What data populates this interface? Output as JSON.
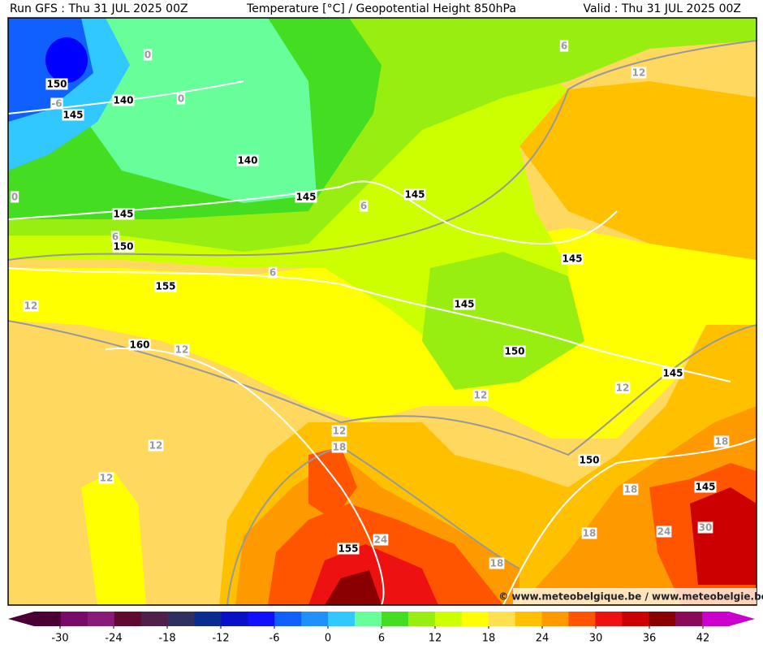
{
  "header": {
    "run": "Run GFS : Thu 31 JUL 2025 00Z",
    "title": "Temperature [°C] / Geopotential Height 850hPa",
    "valid": "Valid : Thu 31 JUL 2025 00Z"
  },
  "map": {
    "height_labels": [
      "150",
      "145",
      "140",
      "140",
      "145",
      "145",
      "150",
      "155",
      "160",
      "145",
      "145",
      "145",
      "150",
      "145",
      "150",
      "145",
      "155"
    ],
    "temperature_labels": [
      "0",
      "-6",
      "0",
      "0",
      "6",
      "6",
      "6",
      "6",
      "12",
      "12",
      "12",
      "12",
      "12",
      "12",
      "18",
      "12",
      "12",
      "18",
      "18",
      "18",
      "24",
      "24",
      "30",
      "18"
    ],
    "credit": "© www.meteobelgique.be / www.meteobelgie.be"
  },
  "colorbar": {
    "ticks": [
      -30,
      -24,
      -18,
      -12,
      -6,
      0,
      6,
      12,
      18,
      24,
      30,
      36,
      42
    ],
    "colors": [
      "#4a0033",
      "#7a0a6a",
      "#8a1a78",
      "#600a30",
      "#50204a",
      "#303060",
      "#0a2c90",
      "#0a10c8",
      "#1010ff",
      "#1060ff",
      "#2090ff",
      "#30c8ff",
      "#66ff99",
      "#44dd22",
      "#99ee11",
      "#ccff00",
      "#ffff00",
      "#ffe050",
      "#ffc000",
      "#ff9900",
      "#ff5500",
      "#ee1111",
      "#cc0000",
      "#8a0000",
      "#8a0a5a",
      "#cc00cc"
    ]
  }
}
